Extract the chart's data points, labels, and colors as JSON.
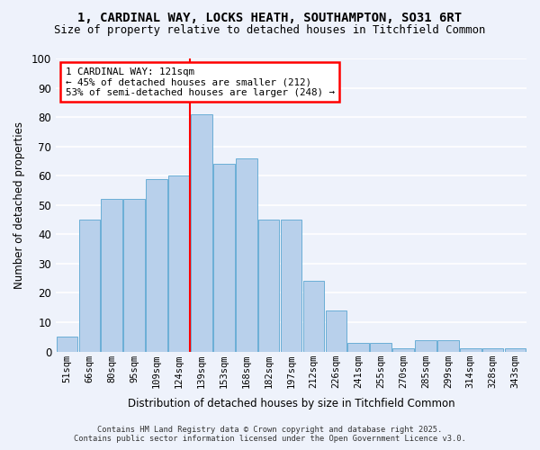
{
  "title_line1": "1, CARDINAL WAY, LOCKS HEATH, SOUTHAMPTON, SO31 6RT",
  "title_line2": "Size of property relative to detached houses in Titchfield Common",
  "xlabel": "Distribution of detached houses by size in Titchfield Common",
  "ylabel": "Number of detached properties",
  "categories": [
    "51sqm",
    "66sqm",
    "80sqm",
    "95sqm",
    "109sqm",
    "124sqm",
    "139sqm",
    "153sqm",
    "168sqm",
    "182sqm",
    "197sqm",
    "212sqm",
    "226sqm",
    "241sqm",
    "255sqm",
    "270sqm",
    "285sqm",
    "299sqm",
    "314sqm",
    "328sqm",
    "343sqm"
  ],
  "values": [
    5,
    45,
    52,
    52,
    59,
    60,
    81,
    64,
    66,
    45,
    45,
    24,
    14,
    3,
    3,
    1,
    4,
    4,
    1,
    1,
    1
  ],
  "bar_color": "#b8d0eb",
  "bar_edge_color": "#6aaed6",
  "background_color": "#eef2fb",
  "grid_color": "#ffffff",
  "vline_index": 6,
  "vline_color": "red",
  "annotation_text": "1 CARDINAL WAY: 121sqm\n← 45% of detached houses are smaller (212)\n53% of semi-detached houses are larger (248) →",
  "annotation_box_color": "white",
  "annotation_box_edge": "red",
  "footer_line1": "Contains HM Land Registry data © Crown copyright and database right 2025.",
  "footer_line2": "Contains public sector information licensed under the Open Government Licence v3.0.",
  "ylim": [
    0,
    100
  ],
  "yticks": [
    0,
    10,
    20,
    30,
    40,
    50,
    60,
    70,
    80,
    90,
    100
  ]
}
